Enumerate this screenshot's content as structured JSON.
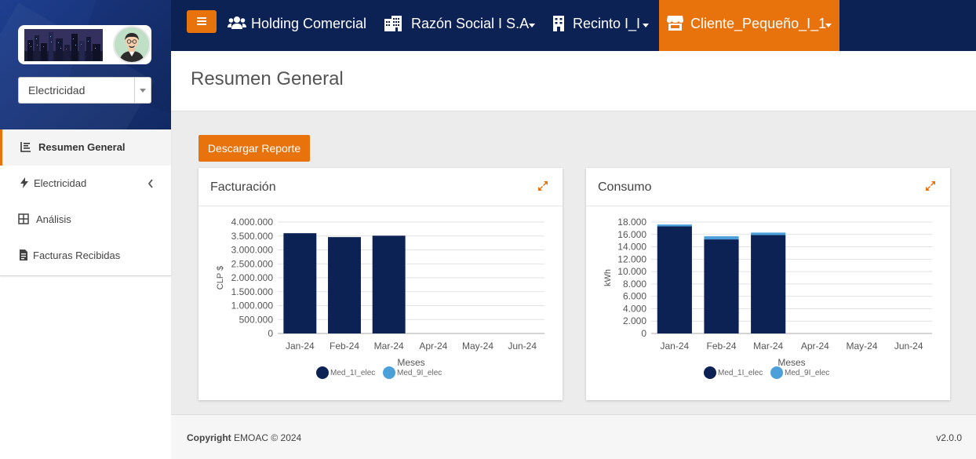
{
  "sidebar": {
    "utility_select": {
      "value": "Electricidad"
    },
    "nav": [
      {
        "label": "Resumen General",
        "icon": "chart-area-icon",
        "active": true
      },
      {
        "label": "Electricidad",
        "icon": "bolt-icon",
        "has_submenu": true
      },
      {
        "label": "Análisis",
        "icon": "table-grid-icon"
      },
      {
        "label": "Facturas Recibidas",
        "icon": "file-invoice-icon"
      }
    ]
  },
  "topbar": {
    "holding": {
      "label": "Holding Comercial",
      "icon": "users-icon"
    },
    "razon_social": {
      "label": "Razón Social I S.A",
      "icon": "building-icon"
    },
    "recinto": {
      "label": "Recinto I_I",
      "icon": "office-building-icon"
    },
    "cliente": {
      "label": "Cliente_Pequeño_I_1",
      "icon": "store-icon"
    },
    "accent": "#e8720c",
    "background": "#0d2254"
  },
  "page": {
    "title": "Resumen General",
    "download_label": "Descargar Reporte"
  },
  "charts": {
    "facturacion": {
      "title": "Facturación",
      "chart_data": {
        "type": "bar",
        "stacked": true,
        "categories": [
          "Jan-24",
          "Feb-24",
          "Mar-24",
          "Apr-24",
          "May-24",
          "Jun-24"
        ],
        "series": [
          {
            "name": "Med_1I_elec",
            "color": "#0d2254",
            "values": [
              3600000,
              3460000,
              3510000,
              0,
              0,
              0
            ]
          },
          {
            "name": "Med_9I_elec",
            "color": "#4ba0da",
            "values": [
              0,
              0,
              0,
              0,
              0,
              0
            ]
          }
        ],
        "yticks": [
          "0",
          "500.000",
          "1.000.000",
          "1.500.000",
          "2.000.000",
          "2.500.000",
          "3.000.000",
          "3.500.000",
          "4.000.000"
        ],
        "ylim": [
          0,
          4000000
        ],
        "xlabel": "Meses",
        "ylabel": "CLP $",
        "legend": "bottom",
        "grid": true
      }
    },
    "consumo": {
      "title": "Consumo",
      "chart_data": {
        "type": "bar",
        "stacked": true,
        "categories": [
          "Jan-24",
          "Feb-24",
          "Mar-24",
          "Apr-24",
          "May-24",
          "Jun-24"
        ],
        "series": [
          {
            "name": "Med_1I_elec",
            "color": "#0d2254",
            "values": [
              17300,
              15200,
              15900,
              0,
              0,
              0
            ]
          },
          {
            "name": "Med_9I_elec",
            "color": "#4ba0da",
            "values": [
              300,
              500,
              400,
              0,
              0,
              0
            ]
          }
        ],
        "yticks": [
          "0",
          "2.000",
          "4.000",
          "6.000",
          "8.000",
          "10.000",
          "12.000",
          "14.000",
          "16.000",
          "18.000"
        ],
        "ylim": [
          0,
          18000
        ],
        "xlabel": "Meses",
        "ylabel": "kWh",
        "legend": "bottom",
        "grid": true
      }
    }
  },
  "footer": {
    "copyright_label": "Copyright",
    "copyright_text": "EMOAC © 2024",
    "version": "v2.0.0"
  }
}
